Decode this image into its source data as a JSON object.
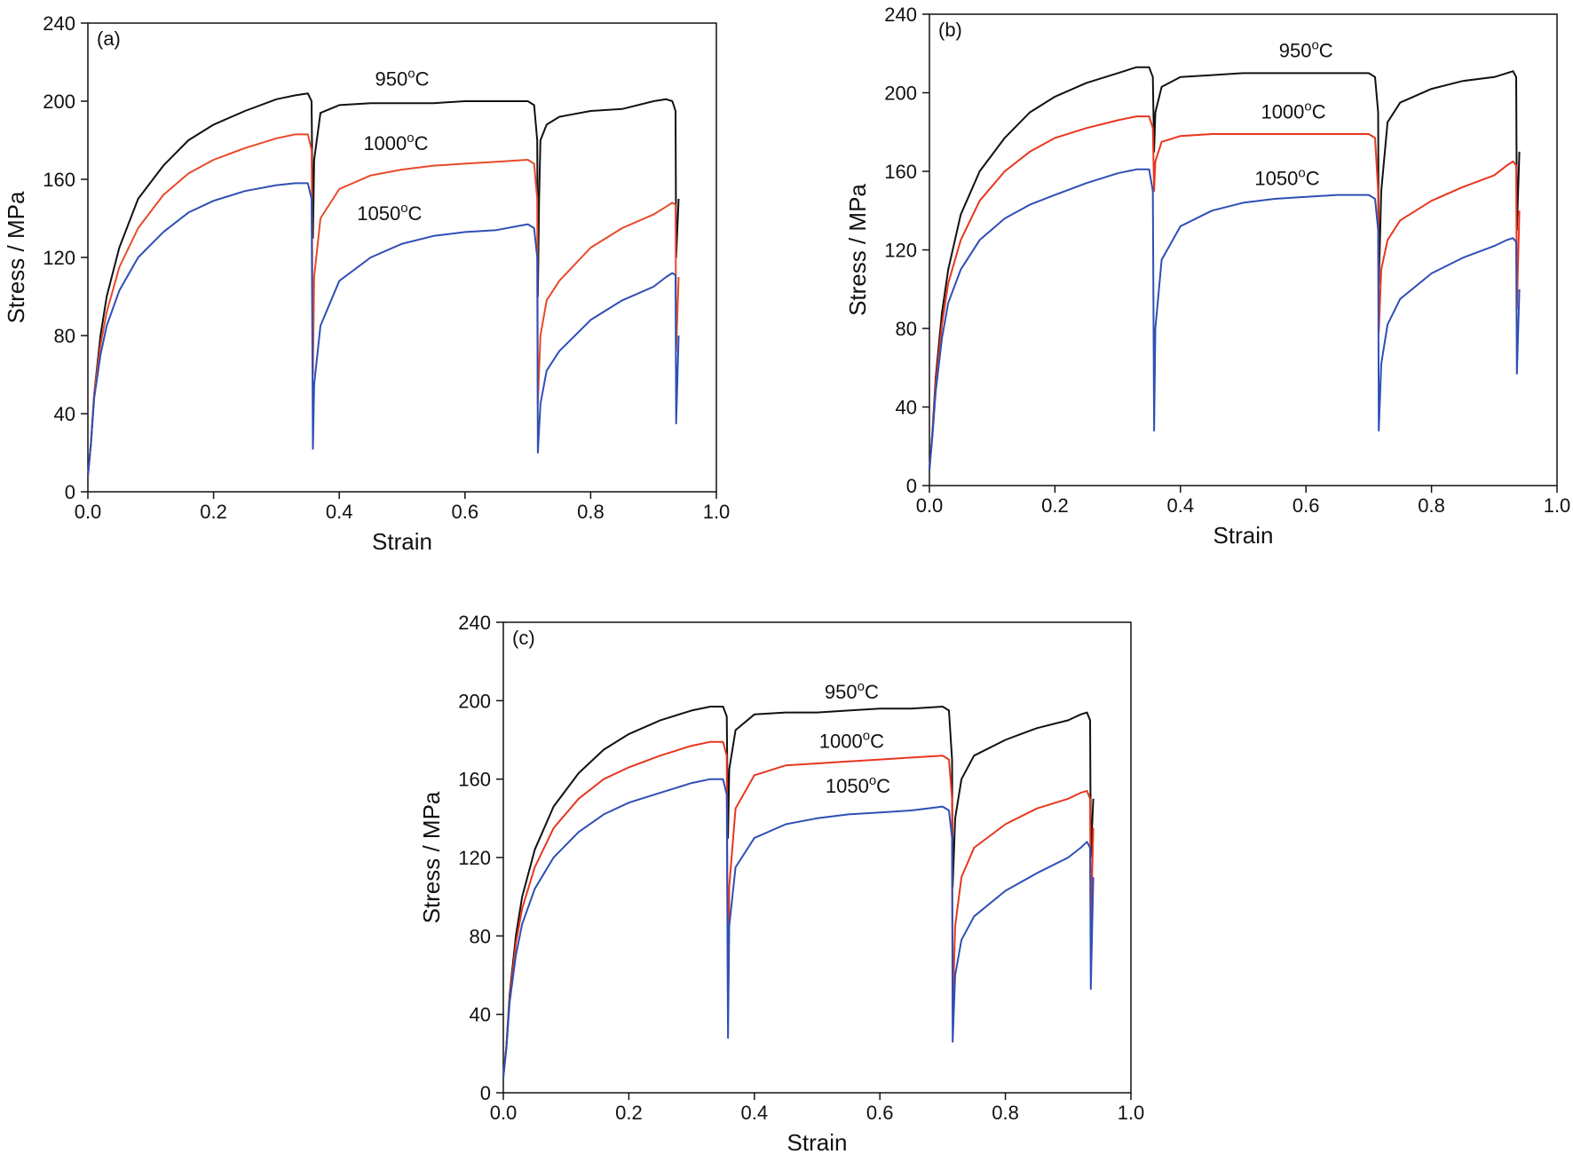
{
  "chart_data": [
    {
      "type": "line",
      "panel_label": "(a)",
      "xlabel": "Strain",
      "ylabel": "Stress / MPa",
      "xlim": [
        0,
        1.0
      ],
      "ylim": [
        0,
        240
      ],
      "xticks": [
        "0.0",
        "0.2",
        "0.4",
        "0.6",
        "0.8",
        "1.0"
      ],
      "yticks": [
        "0",
        "40",
        "80",
        "120",
        "160",
        "200",
        "240"
      ],
      "grid": false,
      "series": [
        {
          "name": "950°C",
          "color": "#111111",
          "x": [
            0.0,
            0.005,
            0.01,
            0.02,
            0.03,
            0.05,
            0.08,
            0.12,
            0.16,
            0.2,
            0.25,
            0.3,
            0.33,
            0.35,
            0.356,
            0.358,
            0.36,
            0.37,
            0.4,
            0.45,
            0.5,
            0.55,
            0.6,
            0.65,
            0.7,
            0.71,
            0.715,
            0.716,
            0.718,
            0.72,
            0.73,
            0.75,
            0.8,
            0.85,
            0.9,
            0.92,
            0.93,
            0.935,
            0.936,
            0.94
          ],
          "y": [
            8,
            25,
            50,
            80,
            100,
            125,
            150,
            167,
            180,
            188,
            195,
            201,
            203,
            204,
            200,
            130,
            170,
            194,
            198,
            199,
            199,
            199,
            200,
            200,
            200,
            198,
            180,
            100,
            150,
            180,
            188,
            192,
            195,
            196,
            200,
            201,
            200,
            195,
            120,
            150
          ]
        },
        {
          "name": "1000°C",
          "color": "#e84a2a",
          "x": [
            0.0,
            0.005,
            0.01,
            0.02,
            0.03,
            0.05,
            0.08,
            0.12,
            0.16,
            0.2,
            0.25,
            0.3,
            0.33,
            0.35,
            0.356,
            0.358,
            0.36,
            0.37,
            0.4,
            0.45,
            0.5,
            0.55,
            0.6,
            0.65,
            0.7,
            0.71,
            0.715,
            0.716,
            0.72,
            0.73,
            0.75,
            0.8,
            0.85,
            0.9,
            0.92,
            0.93,
            0.935,
            0.936,
            0.94
          ],
          "y": [
            8,
            25,
            50,
            75,
            92,
            115,
            135,
            152,
            163,
            170,
            176,
            181,
            183,
            183,
            175,
            60,
            110,
            140,
            155,
            162,
            165,
            167,
            168,
            169,
            170,
            168,
            150,
            45,
            80,
            98,
            108,
            125,
            135,
            142,
            146,
            148,
            147,
            72,
            110
          ]
        },
        {
          "name": "1050°C",
          "color": "#2e4fb5",
          "x": [
            0.0,
            0.005,
            0.01,
            0.02,
            0.03,
            0.05,
            0.08,
            0.12,
            0.16,
            0.2,
            0.25,
            0.3,
            0.33,
            0.35,
            0.356,
            0.358,
            0.36,
            0.37,
            0.4,
            0.45,
            0.5,
            0.55,
            0.6,
            0.65,
            0.7,
            0.71,
            0.715,
            0.716,
            0.72,
            0.73,
            0.75,
            0.8,
            0.85,
            0.9,
            0.92,
            0.93,
            0.935,
            0.936,
            0.94
          ],
          "y": [
            8,
            25,
            48,
            70,
            85,
            103,
            120,
            133,
            143,
            149,
            154,
            157,
            158,
            158,
            150,
            22,
            55,
            85,
            108,
            120,
            127,
            131,
            133,
            134,
            137,
            135,
            120,
            20,
            45,
            62,
            72,
            88,
            98,
            105,
            110,
            112,
            111,
            35,
            80
          ]
        }
      ],
      "annotations": [
        {
          "series": "950°C",
          "x": 0.5,
          "y": 208
        },
        {
          "series": "1000°C",
          "x": 0.49,
          "y": 175
        },
        {
          "series": "1050°C",
          "x": 0.48,
          "y": 139
        }
      ]
    },
    {
      "type": "line",
      "panel_label": "(b)",
      "xlabel": "Strain",
      "ylabel": "Stress / MPa",
      "xlim": [
        0,
        1.0
      ],
      "ylim": [
        0,
        240
      ],
      "xticks": [
        "0.0",
        "0.2",
        "0.4",
        "0.6",
        "0.8",
        "1.0"
      ],
      "yticks": [
        "0",
        "40",
        "80",
        "120",
        "160",
        "200",
        "240"
      ],
      "grid": false,
      "series": [
        {
          "name": "950°C",
          "color": "#111111",
          "x": [
            0.0,
            0.005,
            0.01,
            0.02,
            0.03,
            0.05,
            0.08,
            0.12,
            0.16,
            0.2,
            0.25,
            0.3,
            0.33,
            0.35,
            0.356,
            0.358,
            0.36,
            0.37,
            0.4,
            0.45,
            0.5,
            0.55,
            0.6,
            0.65,
            0.7,
            0.71,
            0.715,
            0.716,
            0.72,
            0.73,
            0.75,
            0.8,
            0.85,
            0.9,
            0.92,
            0.93,
            0.935,
            0.936,
            0.94
          ],
          "y": [
            8,
            28,
            55,
            88,
            110,
            138,
            160,
            177,
            190,
            198,
            205,
            210,
            213,
            213,
            208,
            170,
            190,
            203,
            208,
            209,
            210,
            210,
            210,
            210,
            210,
            208,
            190,
            102,
            150,
            185,
            195,
            202,
            206,
            208,
            210,
            211,
            208,
            130,
            170
          ]
        },
        {
          "name": "1000°C",
          "color": "#e8361f",
          "x": [
            0.0,
            0.005,
            0.01,
            0.02,
            0.03,
            0.05,
            0.08,
            0.12,
            0.16,
            0.2,
            0.25,
            0.3,
            0.33,
            0.35,
            0.356,
            0.358,
            0.36,
            0.37,
            0.4,
            0.45,
            0.5,
            0.55,
            0.6,
            0.65,
            0.7,
            0.71,
            0.715,
            0.716,
            0.72,
            0.73,
            0.75,
            0.8,
            0.85,
            0.9,
            0.92,
            0.93,
            0.935,
            0.936,
            0.94
          ],
          "y": [
            8,
            27,
            52,
            82,
            103,
            125,
            145,
            160,
            170,
            177,
            182,
            186,
            188,
            188,
            182,
            150,
            165,
            175,
            178,
            179,
            179,
            179,
            179,
            179,
            179,
            177,
            150,
            78,
            110,
            125,
            135,
            145,
            152,
            158,
            163,
            165,
            163,
            90,
            140
          ]
        },
        {
          "name": "1050°C",
          "color": "#2e4fb5",
          "x": [
            0.0,
            0.005,
            0.01,
            0.02,
            0.03,
            0.05,
            0.08,
            0.12,
            0.16,
            0.2,
            0.25,
            0.3,
            0.33,
            0.35,
            0.356,
            0.358,
            0.36,
            0.37,
            0.4,
            0.45,
            0.5,
            0.55,
            0.6,
            0.65,
            0.7,
            0.71,
            0.715,
            0.716,
            0.72,
            0.73,
            0.75,
            0.8,
            0.85,
            0.9,
            0.92,
            0.93,
            0.935,
            0.936,
            0.94
          ],
          "y": [
            8,
            26,
            48,
            75,
            93,
            110,
            125,
            136,
            143,
            148,
            154,
            159,
            161,
            161,
            150,
            28,
            80,
            115,
            132,
            140,
            144,
            146,
            147,
            148,
            148,
            146,
            130,
            28,
            62,
            82,
            95,
            108,
            116,
            122,
            125,
            126,
            124,
            57,
            100
          ]
        }
      ],
      "annotations": [
        {
          "series": "950°C",
          "x": 0.6,
          "y": 218
        },
        {
          "series": "1000°C",
          "x": 0.58,
          "y": 187
        },
        {
          "series": "1050°C",
          "x": 0.57,
          "y": 153
        }
      ]
    },
    {
      "type": "line",
      "panel_label": "(c)",
      "xlabel": "Strain",
      "ylabel": "Stress / MPa",
      "xlim": [
        0,
        1.0
      ],
      "ylim": [
        0,
        240
      ],
      "xticks": [
        "0.0",
        "0.2",
        "0.4",
        "0.6",
        "0.8",
        "1.0"
      ],
      "yticks": [
        "0",
        "40",
        "80",
        "120",
        "160",
        "200",
        "240"
      ],
      "grid": false,
      "series": [
        {
          "name": "950°C",
          "color": "#111111",
          "x": [
            0.0,
            0.005,
            0.01,
            0.02,
            0.03,
            0.05,
            0.08,
            0.12,
            0.16,
            0.2,
            0.25,
            0.3,
            0.33,
            0.35,
            0.356,
            0.358,
            0.36,
            0.37,
            0.4,
            0.45,
            0.5,
            0.55,
            0.6,
            0.65,
            0.7,
            0.71,
            0.715,
            0.716,
            0.72,
            0.73,
            0.75,
            0.8,
            0.85,
            0.9,
            0.92,
            0.93,
            0.935,
            0.936,
            0.94
          ],
          "y": [
            8,
            24,
            50,
            80,
            100,
            124,
            146,
            163,
            175,
            183,
            190,
            195,
            197,
            197,
            192,
            130,
            165,
            185,
            193,
            194,
            194,
            195,
            196,
            196,
            197,
            195,
            170,
            105,
            140,
            160,
            172,
            180,
            186,
            190,
            193,
            194,
            190,
            120,
            150
          ]
        },
        {
          "name": "1000°C",
          "color": "#e8361f",
          "x": [
            0.0,
            0.005,
            0.01,
            0.02,
            0.03,
            0.05,
            0.08,
            0.12,
            0.16,
            0.2,
            0.25,
            0.3,
            0.33,
            0.35,
            0.356,
            0.358,
            0.36,
            0.37,
            0.4,
            0.45,
            0.5,
            0.55,
            0.6,
            0.65,
            0.7,
            0.71,
            0.715,
            0.716,
            0.72,
            0.73,
            0.75,
            0.8,
            0.85,
            0.9,
            0.92,
            0.93,
            0.935,
            0.936,
            0.94
          ],
          "y": [
            8,
            24,
            48,
            76,
            94,
            115,
            135,
            150,
            160,
            166,
            172,
            177,
            179,
            179,
            172,
            40,
            105,
            145,
            162,
            167,
            168,
            169,
            170,
            171,
            172,
            170,
            150,
            42,
            85,
            110,
            125,
            137,
            145,
            150,
            153,
            154,
            150,
            85,
            135
          ]
        },
        {
          "name": "1050°C",
          "color": "#2e4fb5",
          "x": [
            0.0,
            0.005,
            0.01,
            0.02,
            0.03,
            0.05,
            0.08,
            0.12,
            0.16,
            0.2,
            0.25,
            0.3,
            0.33,
            0.35,
            0.356,
            0.358,
            0.36,
            0.37,
            0.4,
            0.45,
            0.5,
            0.55,
            0.6,
            0.65,
            0.7,
            0.71,
            0.715,
            0.716,
            0.72,
            0.73,
            0.75,
            0.8,
            0.85,
            0.9,
            0.92,
            0.93,
            0.935,
            0.936,
            0.94
          ],
          "y": [
            8,
            23,
            46,
            70,
            86,
            104,
            120,
            133,
            142,
            148,
            153,
            158,
            160,
            160,
            152,
            28,
            85,
            115,
            130,
            137,
            140,
            142,
            143,
            144,
            146,
            144,
            130,
            26,
            60,
            78,
            90,
            103,
            112,
            120,
            125,
            128,
            125,
            53,
            110
          ]
        }
      ],
      "annotations": [
        {
          "series": "950°C",
          "x": 0.555,
          "y": 201
        },
        {
          "series": "1000°C",
          "x": 0.555,
          "y": 176
        },
        {
          "series": "1050°C",
          "x": 0.565,
          "y": 153
        }
      ]
    }
  ]
}
